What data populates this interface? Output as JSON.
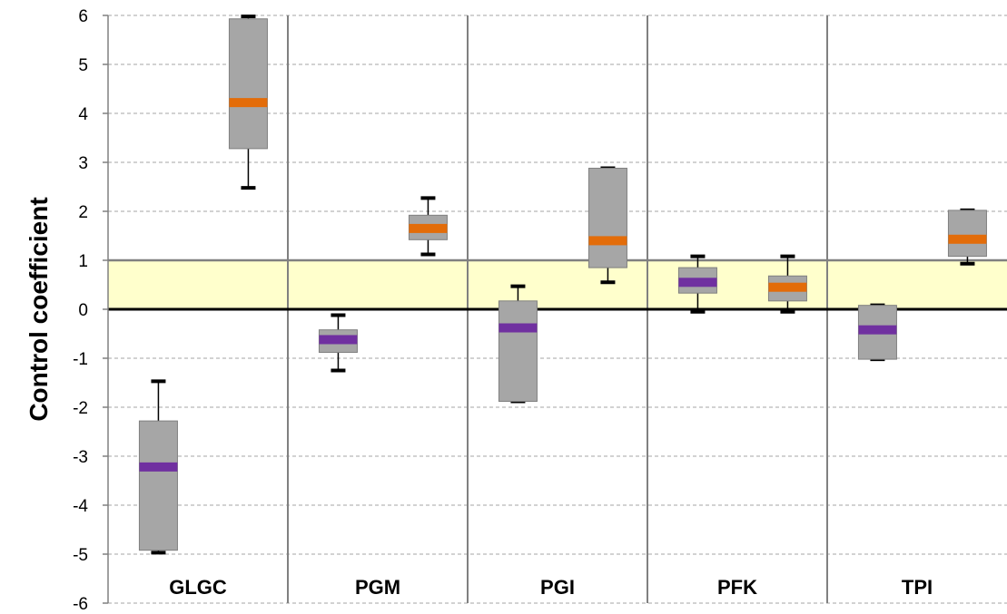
{
  "chart_data": {
    "type": "box",
    "ylabel": "Control coefficient",
    "ylim": [
      -6,
      6
    ],
    "y_ticks": [
      "-6",
      "-5",
      "-4",
      "-3",
      "-2",
      "-1",
      "0",
      "1",
      "2",
      "3",
      "4",
      "5",
      "6"
    ],
    "grid": "horizontal dashed",
    "band": {
      "from": 0,
      "to": 1,
      "color": "#ffffcc"
    },
    "categories": [
      "GLGC",
      "PGM",
      "PGI",
      "PFK",
      "TPI"
    ],
    "boxes": [
      {
        "category": "GLGC",
        "position": 0,
        "whisker_low": -4.97,
        "q1": -4.92,
        "median": -3.22,
        "q3": -2.28,
        "whisker_high": -1.47,
        "median_color": "#7030a0"
      },
      {
        "category": "GLGC",
        "position": 1,
        "whisker_low": 2.48,
        "q1": 3.28,
        "median": 4.22,
        "q3": 5.93,
        "whisker_high": 5.98,
        "median_color": "#e36c09"
      },
      {
        "category": "PGM",
        "position": 0,
        "whisker_low": -1.25,
        "q1": -0.88,
        "median": -0.62,
        "q3": -0.42,
        "whisker_high": -0.12,
        "median_color": "#7030a0"
      },
      {
        "category": "PGM",
        "position": 1,
        "whisker_low": 1.12,
        "q1": 1.42,
        "median": 1.65,
        "q3": 1.92,
        "whisker_high": 2.27,
        "median_color": "#e36c09"
      },
      {
        "category": "PGI",
        "position": 0,
        "whisker_low": -1.88,
        "q1": -1.88,
        "median": -0.38,
        "q3": 0.17,
        "whisker_high": 0.47,
        "median_color": "#7030a0"
      },
      {
        "category": "PGI",
        "position": 1,
        "whisker_low": 0.55,
        "q1": 0.85,
        "median": 1.4,
        "q3": 2.88,
        "whisker_high": 2.88,
        "median_color": "#e36c09"
      },
      {
        "category": "PFK",
        "position": 0,
        "whisker_low": -0.05,
        "q1": 0.33,
        "median": 0.55,
        "q3": 0.85,
        "whisker_high": 1.08,
        "median_color": "#7030a0"
      },
      {
        "category": "PFK",
        "position": 1,
        "whisker_low": -0.05,
        "q1": 0.17,
        "median": 0.45,
        "q3": 0.68,
        "whisker_high": 1.08,
        "median_color": "#e36c09"
      },
      {
        "category": "TPI",
        "position": 0,
        "whisker_low": -1.02,
        "q1": -1.02,
        "median": -0.42,
        "q3": 0.08,
        "whisker_high": 0.08,
        "median_color": "#7030a0"
      },
      {
        "category": "TPI",
        "position": 1,
        "whisker_low": 0.93,
        "q1": 1.08,
        "median": 1.43,
        "q3": 2.02,
        "whisker_high": 2.02,
        "median_color": "#e36c09"
      }
    ],
    "colors": {
      "box_fill": "#a6a6a6",
      "box_stroke": "#7f7f7f",
      "grid": "#a6a6a6",
      "divider": "#808080",
      "zero_line": "#000000",
      "band_edge": "#808080"
    }
  }
}
